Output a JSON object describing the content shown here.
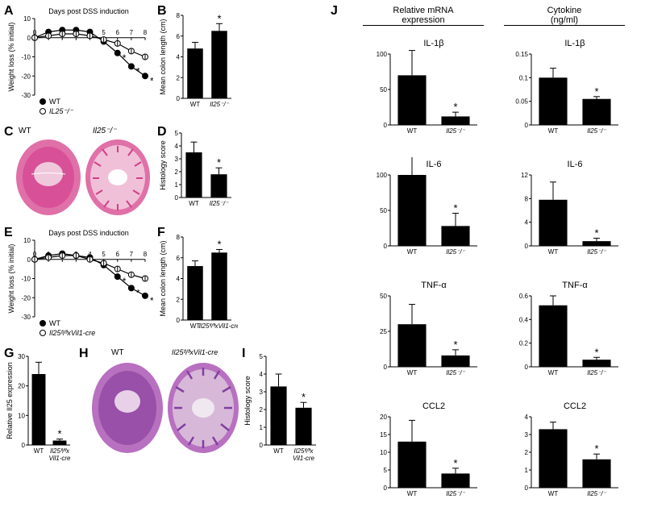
{
  "panels": {
    "A": {
      "label": "A",
      "title": "Days post DSS induction",
      "ylabel": "Weight loss (% initial)",
      "x": [
        0,
        1,
        2,
        3,
        4,
        5,
        6,
        7,
        8
      ],
      "wt": [
        0,
        3,
        4,
        4,
        3,
        -2,
        -8,
        -15,
        -20
      ],
      "ko": [
        0,
        1,
        2,
        2,
        1,
        -1,
        -3,
        -7,
        -10
      ],
      "wt_label": "WT",
      "ko_label": "IL25⁻/⁻",
      "ylim": [
        -30,
        10
      ],
      "colors": {
        "wt": "#000000",
        "ko": "#ffffff"
      }
    },
    "B": {
      "label": "B",
      "ylabel": "Mean colon length (cm)",
      "categories": [
        "WT",
        "Il25⁻/⁻"
      ],
      "values": [
        4.8,
        6.5
      ],
      "errors": [
        0.6,
        0.7
      ],
      "ylim": [
        0,
        8
      ],
      "star_idx": 1
    },
    "C": {
      "label": "C",
      "left": "WT",
      "right": "Il25⁻/⁻"
    },
    "D": {
      "label": "D",
      "ylabel": "Histology score",
      "categories": [
        "WT",
        "Il25⁻/⁻"
      ],
      "values": [
        3.5,
        1.8
      ],
      "errors": [
        0.8,
        0.5
      ],
      "ylim": [
        0,
        5
      ],
      "star_idx": 1
    },
    "E": {
      "label": "E",
      "title": "Days post DSS induction",
      "ylabel": "Weight loss (% initial)",
      "x": [
        0,
        1,
        2,
        3,
        4,
        5,
        6,
        7,
        8
      ],
      "wt": [
        0,
        2,
        3,
        2,
        1,
        -3,
        -9,
        -15,
        -19
      ],
      "ko": [
        0,
        1,
        2,
        2,
        0,
        -2,
        -5,
        -8,
        -10
      ],
      "wt_label": "WT",
      "ko_label": "Il25ᶠˡ/ᶠˡxVil1-cre",
      "ylim": [
        -30,
        10
      ]
    },
    "F": {
      "label": "F",
      "ylabel": "Mean colon length (cm)",
      "categories": [
        "WT",
        "Il25ᶠˡ/ᶠˡxVil1-cre"
      ],
      "values": [
        5.2,
        6.5
      ],
      "errors": [
        0.5,
        0.3
      ],
      "ylim": [
        0,
        8
      ],
      "star_idx": 1
    },
    "G": {
      "label": "G",
      "ylabel": "Relative Il25 expression",
      "categories": [
        "WT",
        "Il25ᶠˡ/ᶠˡx\nVil1-cre"
      ],
      "values": [
        24,
        1.5
      ],
      "errors": [
        4,
        0.5
      ],
      "ylim": [
        0,
        30
      ],
      "star_idx": 1
    },
    "H": {
      "label": "H",
      "left": "WT",
      "right": "Il25ᶠˡ/ᶠˡxVil1-cre"
    },
    "I": {
      "label": "I",
      "ylabel": "Histology score",
      "categories": [
        "WT",
        "Il25ᶠˡ/ᶠˡx\nVil1-cre"
      ],
      "values": [
        3.3,
        2.1
      ],
      "errors": [
        0.7,
        0.3
      ],
      "ylim": [
        0,
        5
      ],
      "star_idx": 1
    },
    "J": {
      "label": "J",
      "left_header": "Relative mRNA\nexpression",
      "right_header": "Cytokine\n(ng/ml)",
      "rows": [
        {
          "name": "IL-1β",
          "mrna": {
            "cats": [
              "WT",
              "Il25⁻/⁻"
            ],
            "vals": [
              70,
              12
            ],
            "err": [
              35,
              6
            ],
            "ylim": [
              0,
              100
            ]
          },
          "cyto": {
            "cats": [
              "WT",
              "Il25⁻/⁻"
            ],
            "vals": [
              0.1,
              0.055
            ],
            "err": [
              0.02,
              0.005
            ],
            "ylim": [
              0,
              0.15
            ]
          }
        },
        {
          "name": "IL-6",
          "mrna": {
            "cats": [
              "WT",
              "Il25⁻/⁻"
            ],
            "vals": [
              100,
              28
            ],
            "err": [
              38,
              18
            ],
            "ylim": [
              0,
              100
            ]
          },
          "cyto": {
            "cats": [
              "WT",
              "Il25⁻/⁻"
            ],
            "vals": [
              7.8,
              0.8
            ],
            "err": [
              3,
              0.5
            ],
            "ylim": [
              0,
              12
            ]
          }
        },
        {
          "name": "TNF-α",
          "mrna": {
            "cats": [
              "WT",
              "Il25⁻/⁻"
            ],
            "vals": [
              30,
              8
            ],
            "err": [
              14,
              4
            ],
            "ylim": [
              0,
              50
            ]
          },
          "cyto": {
            "cats": [
              "WT",
              "Il25⁻/⁻"
            ],
            "vals": [
              0.52,
              0.06
            ],
            "err": [
              0.08,
              0.02
            ],
            "ylim": [
              0,
              0.6
            ]
          }
        },
        {
          "name": "CCL2",
          "mrna": {
            "cats": [
              "WT",
              "Il25⁻/⁻"
            ],
            "vals": [
              13,
              4
            ],
            "err": [
              6,
              1.5
            ],
            "ylim": [
              0,
              20
            ]
          },
          "cyto": {
            "cats": [
              "WT",
              "Il25⁻/⁻"
            ],
            "vals": [
              3.3,
              1.6
            ],
            "err": [
              0.4,
              0.3
            ],
            "ylim": [
              0,
              4
            ]
          }
        }
      ]
    }
  },
  "colors": {
    "bar": "#000000",
    "axis": "#000000"
  }
}
